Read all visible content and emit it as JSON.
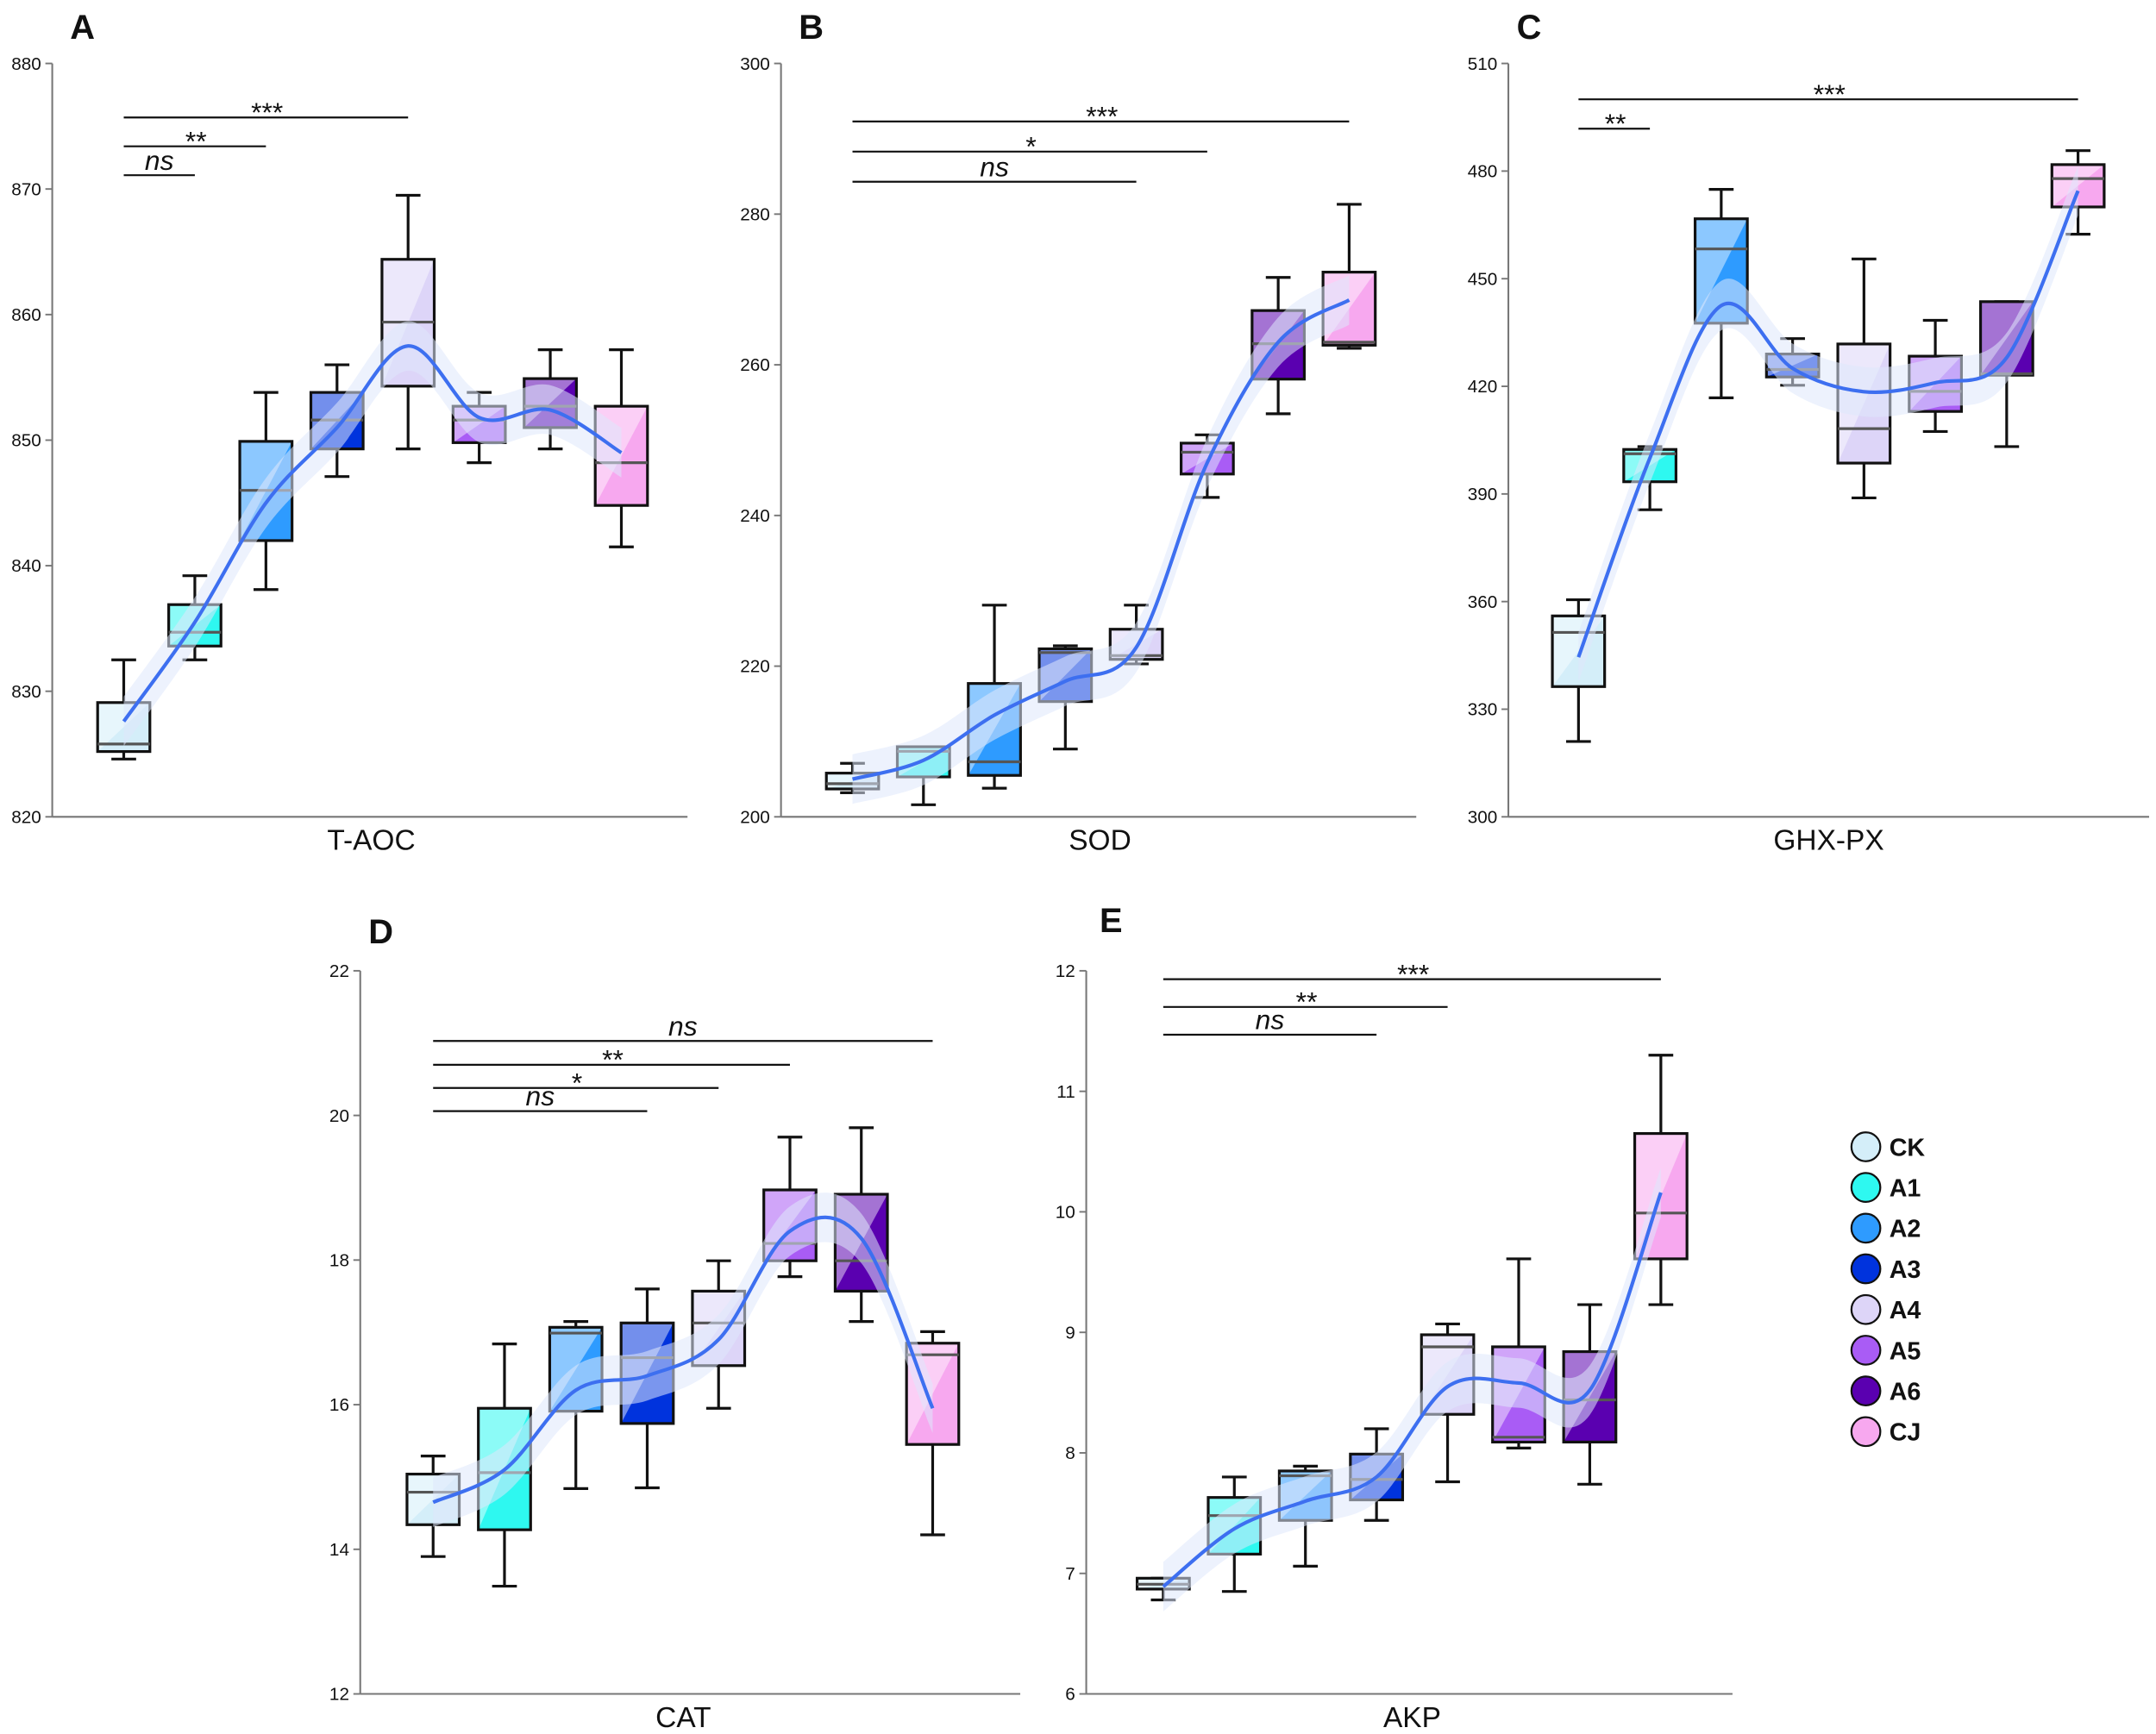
{
  "legend": {
    "items": [
      {
        "label": "CK",
        "color": "#d4eef9"
      },
      {
        "label": "A1",
        "color": "#2ef8f0"
      },
      {
        "label": "A2",
        "color": "#2e9bff"
      },
      {
        "label": "A3",
        "color": "#0033dd"
      },
      {
        "label": "A4",
        "color": "#ddd5f8"
      },
      {
        "label": "A5",
        "color": "#a95cf5"
      },
      {
        "label": "A6",
        "color": "#5a00b0"
      },
      {
        "label": "CJ",
        "color": "#f7a8ef"
      }
    ]
  },
  "colors": {
    "trend_line": "#3d6ff0",
    "trend_band": "#dfe8fb"
  },
  "chart_data": [
    {
      "panel": "A",
      "type": "box",
      "xlabel": "T-AOC",
      "ylim": [
        820,
        880
      ],
      "yticks": [
        "820",
        "830",
        "840",
        "850",
        "860",
        "870",
        "880"
      ],
      "categories": [
        "CK",
        "A1",
        "A2",
        "A3",
        "A4",
        "A5",
        "A6",
        "CJ"
      ],
      "boxes": [
        {
          "min": 824.6,
          "q1": 825.2,
          "median": 825.8,
          "q3": 829.1,
          "max": 832.5
        },
        {
          "min": 832.5,
          "q1": 833.6,
          "median": 834.7,
          "q3": 836.9,
          "max": 839.2
        },
        {
          "min": 838.1,
          "q1": 842.0,
          "median": 846.0,
          "q3": 849.9,
          "max": 853.8
        },
        {
          "min": 847.1,
          "q1": 849.3,
          "median": 851.6,
          "q3": 853.8,
          "max": 856.0
        },
        {
          "min": 849.3,
          "q1": 854.3,
          "median": 859.4,
          "q3": 864.4,
          "max": 869.5
        },
        {
          "min": 848.2,
          "q1": 849.8,
          "median": 851.6,
          "q3": 852.7,
          "max": 853.8
        },
        {
          "min": 849.3,
          "q1": 851.0,
          "median": 852.7,
          "q3": 854.9,
          "max": 857.2
        },
        {
          "min": 841.5,
          "q1": 844.8,
          "median": 848.2,
          "q3": 852.7,
          "max": 857.2
        }
      ],
      "trend": [
        827.6,
        835.5,
        845.0,
        851.0,
        857.5,
        851.8,
        852.4,
        849.0
      ],
      "comparisons": [
        {
          "from": "CK",
          "to": "A1",
          "label": "ns",
          "y": 871.1
        },
        {
          "from": "CK",
          "to": "A2",
          "label": "**",
          "y": 873.4
        },
        {
          "from": "CK",
          "to": "A4",
          "label": "***",
          "y": 875.7
        }
      ]
    },
    {
      "panel": "B",
      "type": "box",
      "xlabel": "SOD",
      "ylim": [
        200,
        300
      ],
      "yticks": [
        "200",
        "220",
        "240",
        "260",
        "280",
        "300"
      ],
      "categories": [
        "CK",
        "A1",
        "A2",
        "A3",
        "A4",
        "A5",
        "A6",
        "CJ"
      ],
      "boxes": [
        {
          "min": 203.2,
          "q1": 203.7,
          "median": 204.4,
          "q3": 205.8,
          "max": 207.1
        },
        {
          "min": 201.6,
          "q1": 205.3,
          "median": 208.7,
          "q3": 209.3,
          "max": 209.3
        },
        {
          "min": 203.8,
          "q1": 205.5,
          "median": 207.3,
          "q3": 217.7,
          "max": 228.1
        },
        {
          "min": 209.0,
          "q1": 215.3,
          "median": 221.8,
          "q3": 222.3,
          "max": 222.7
        },
        {
          "min": 220.3,
          "q1": 220.9,
          "median": 221.4,
          "q3": 224.9,
          "max": 228.1
        },
        {
          "min": 242.4,
          "q1": 245.5,
          "median": 248.4,
          "q3": 249.6,
          "max": 250.7
        },
        {
          "min": 253.5,
          "q1": 258.1,
          "median": 262.8,
          "q3": 267.2,
          "max": 271.6
        },
        {
          "min": 262.2,
          "q1": 262.6,
          "median": 263.0,
          "q3": 272.3,
          "max": 281.3
        }
      ],
      "trend": [
        205.0,
        207.5,
        213.5,
        218.0,
        222.5,
        247.0,
        263.0,
        268.6
      ],
      "comparisons": [
        {
          "from": "CK",
          "to": "A4",
          "label": "ns",
          "y": 284.3
        },
        {
          "from": "CK",
          "to": "A5",
          "label": "*",
          "y": 288.3
        },
        {
          "from": "CK",
          "to": "CJ",
          "label": "***",
          "y": 292.3
        }
      ]
    },
    {
      "panel": "C",
      "type": "box",
      "xlabel": "GHX-PX",
      "ylim": [
        300,
        510
      ],
      "yticks": [
        "300",
        "330",
        "360",
        "390",
        "420",
        "450",
        "480",
        "510"
      ],
      "categories": [
        "CK",
        "A1",
        "A2",
        "A3",
        "A4",
        "A5",
        "A6",
        "CJ"
      ],
      "boxes": [
        {
          "min": 321.0,
          "q1": 336.3,
          "median": 351.4,
          "q3": 356.0,
          "max": 360.5
        },
        {
          "min": 385.6,
          "q1": 393.4,
          "median": 401.2,
          "q3": 402.4,
          "max": 403.2
        },
        {
          "min": 416.8,
          "q1": 437.6,
          "median": 458.3,
          "q3": 466.7,
          "max": 474.9
        },
        {
          "min": 420.3,
          "q1": 422.6,
          "median": 424.7,
          "q3": 429.0,
          "max": 433.3
        },
        {
          "min": 388.9,
          "q1": 398.6,
          "median": 408.2,
          "q3": 431.8,
          "max": 455.5
        },
        {
          "min": 407.4,
          "q1": 413.0,
          "median": 418.6,
          "q3": 428.4,
          "max": 438.4
        },
        {
          "min": 403.2,
          "q1": 423.1,
          "median": 423.5,
          "q3": 443.6,
          "max": 443.6
        },
        {
          "min": 462.4,
          "q1": 470.0,
          "median": 477.9,
          "q3": 481.8,
          "max": 485.7
        }
      ],
      "trend": [
        344.5,
        400.0,
        442.5,
        425.0,
        418.5,
        421.0,
        428.0,
        474.5
      ],
      "comparisons": [
        {
          "from": "CK",
          "to": "A1",
          "label": "**",
          "y": 491.8
        },
        {
          "from": "CK",
          "to": "CJ",
          "label": "***",
          "y": 500.0
        }
      ]
    },
    {
      "panel": "D",
      "type": "box",
      "xlabel": "CAT",
      "ylim": [
        12,
        22
      ],
      "yticks": [
        "12",
        "14",
        "16",
        "18",
        "20",
        "22"
      ],
      "categories": [
        "CK",
        "A1",
        "A2",
        "A3",
        "A4",
        "A5",
        "A6",
        "CJ"
      ],
      "boxes": [
        {
          "min": 13.9,
          "q1": 14.34,
          "median": 14.79,
          "q3": 15.04,
          "max": 15.29
        },
        {
          "min": 13.49,
          "q1": 14.27,
          "median": 15.06,
          "q3": 15.95,
          "max": 16.84
        },
        {
          "min": 14.84,
          "q1": 15.91,
          "median": 16.99,
          "q3": 17.07,
          "max": 17.15
        },
        {
          "min": 14.85,
          "q1": 15.74,
          "median": 16.65,
          "q3": 17.13,
          "max": 17.6
        },
        {
          "min": 15.95,
          "q1": 16.54,
          "median": 17.13,
          "q3": 17.57,
          "max": 17.99
        },
        {
          "min": 17.77,
          "q1": 17.99,
          "median": 18.23,
          "q3": 18.97,
          "max": 19.7
        },
        {
          "min": 17.15,
          "q1": 17.57,
          "median": 17.99,
          "q3": 18.91,
          "max": 19.83
        },
        {
          "min": 14.2,
          "q1": 15.45,
          "median": 16.69,
          "q3": 16.85,
          "max": 17.01
        }
      ],
      "trend": [
        14.65,
        15.1,
        16.2,
        16.4,
        16.9,
        18.4,
        18.3,
        15.95
      ],
      "comparisons": [
        {
          "from": "CK",
          "to": "A3",
          "label": "ns",
          "y": 20.06
        },
        {
          "from": "CK",
          "to": "A4",
          "label": "*",
          "y": 20.38
        },
        {
          "from": "CK",
          "to": "A5",
          "label": "**",
          "y": 20.7
        },
        {
          "from": "CK",
          "to": "CJ",
          "label": "ns",
          "y": 21.03
        }
      ]
    },
    {
      "panel": "E",
      "type": "box",
      "xlabel": "AKP",
      "ylim": [
        6,
        12
      ],
      "yticks": [
        "6",
        "7",
        "8",
        "9",
        "10",
        "11",
        "12"
      ],
      "categories": [
        "CK",
        "A1",
        "A2",
        "A3",
        "A4",
        "A5",
        "A6",
        "CJ"
      ],
      "boxes": [
        {
          "min": 6.78,
          "q1": 6.87,
          "median": 6.91,
          "q3": 6.96,
          "max": 6.96
        },
        {
          "min": 6.85,
          "q1": 7.16,
          "median": 7.48,
          "q3": 7.63,
          "max": 7.8
        },
        {
          "min": 7.06,
          "q1": 7.44,
          "median": 7.81,
          "q3": 7.85,
          "max": 7.89
        },
        {
          "min": 7.44,
          "q1": 7.61,
          "median": 7.78,
          "q3": 7.99,
          "max": 8.2
        },
        {
          "min": 7.76,
          "q1": 8.32,
          "median": 8.88,
          "q3": 8.98,
          "max": 9.07
        },
        {
          "min": 8.04,
          "q1": 8.09,
          "median": 8.13,
          "q3": 8.88,
          "max": 9.61
        },
        {
          "min": 7.74,
          "q1": 8.09,
          "median": 8.44,
          "q3": 8.84,
          "max": 9.23
        },
        {
          "min": 9.23,
          "q1": 9.61,
          "median": 9.99,
          "q3": 10.65,
          "max": 11.3
        }
      ],
      "trend": [
        6.89,
        7.37,
        7.6,
        7.8,
        8.55,
        8.58,
        8.52,
        10.16
      ],
      "comparisons": [
        {
          "from": "CK",
          "to": "A3",
          "label": "ns",
          "y": 11.47
        },
        {
          "from": "CK",
          "to": "A4",
          "label": "**",
          "y": 11.7
        },
        {
          "from": "CK",
          "to": "CJ",
          "label": "***",
          "y": 11.93
        }
      ]
    }
  ]
}
